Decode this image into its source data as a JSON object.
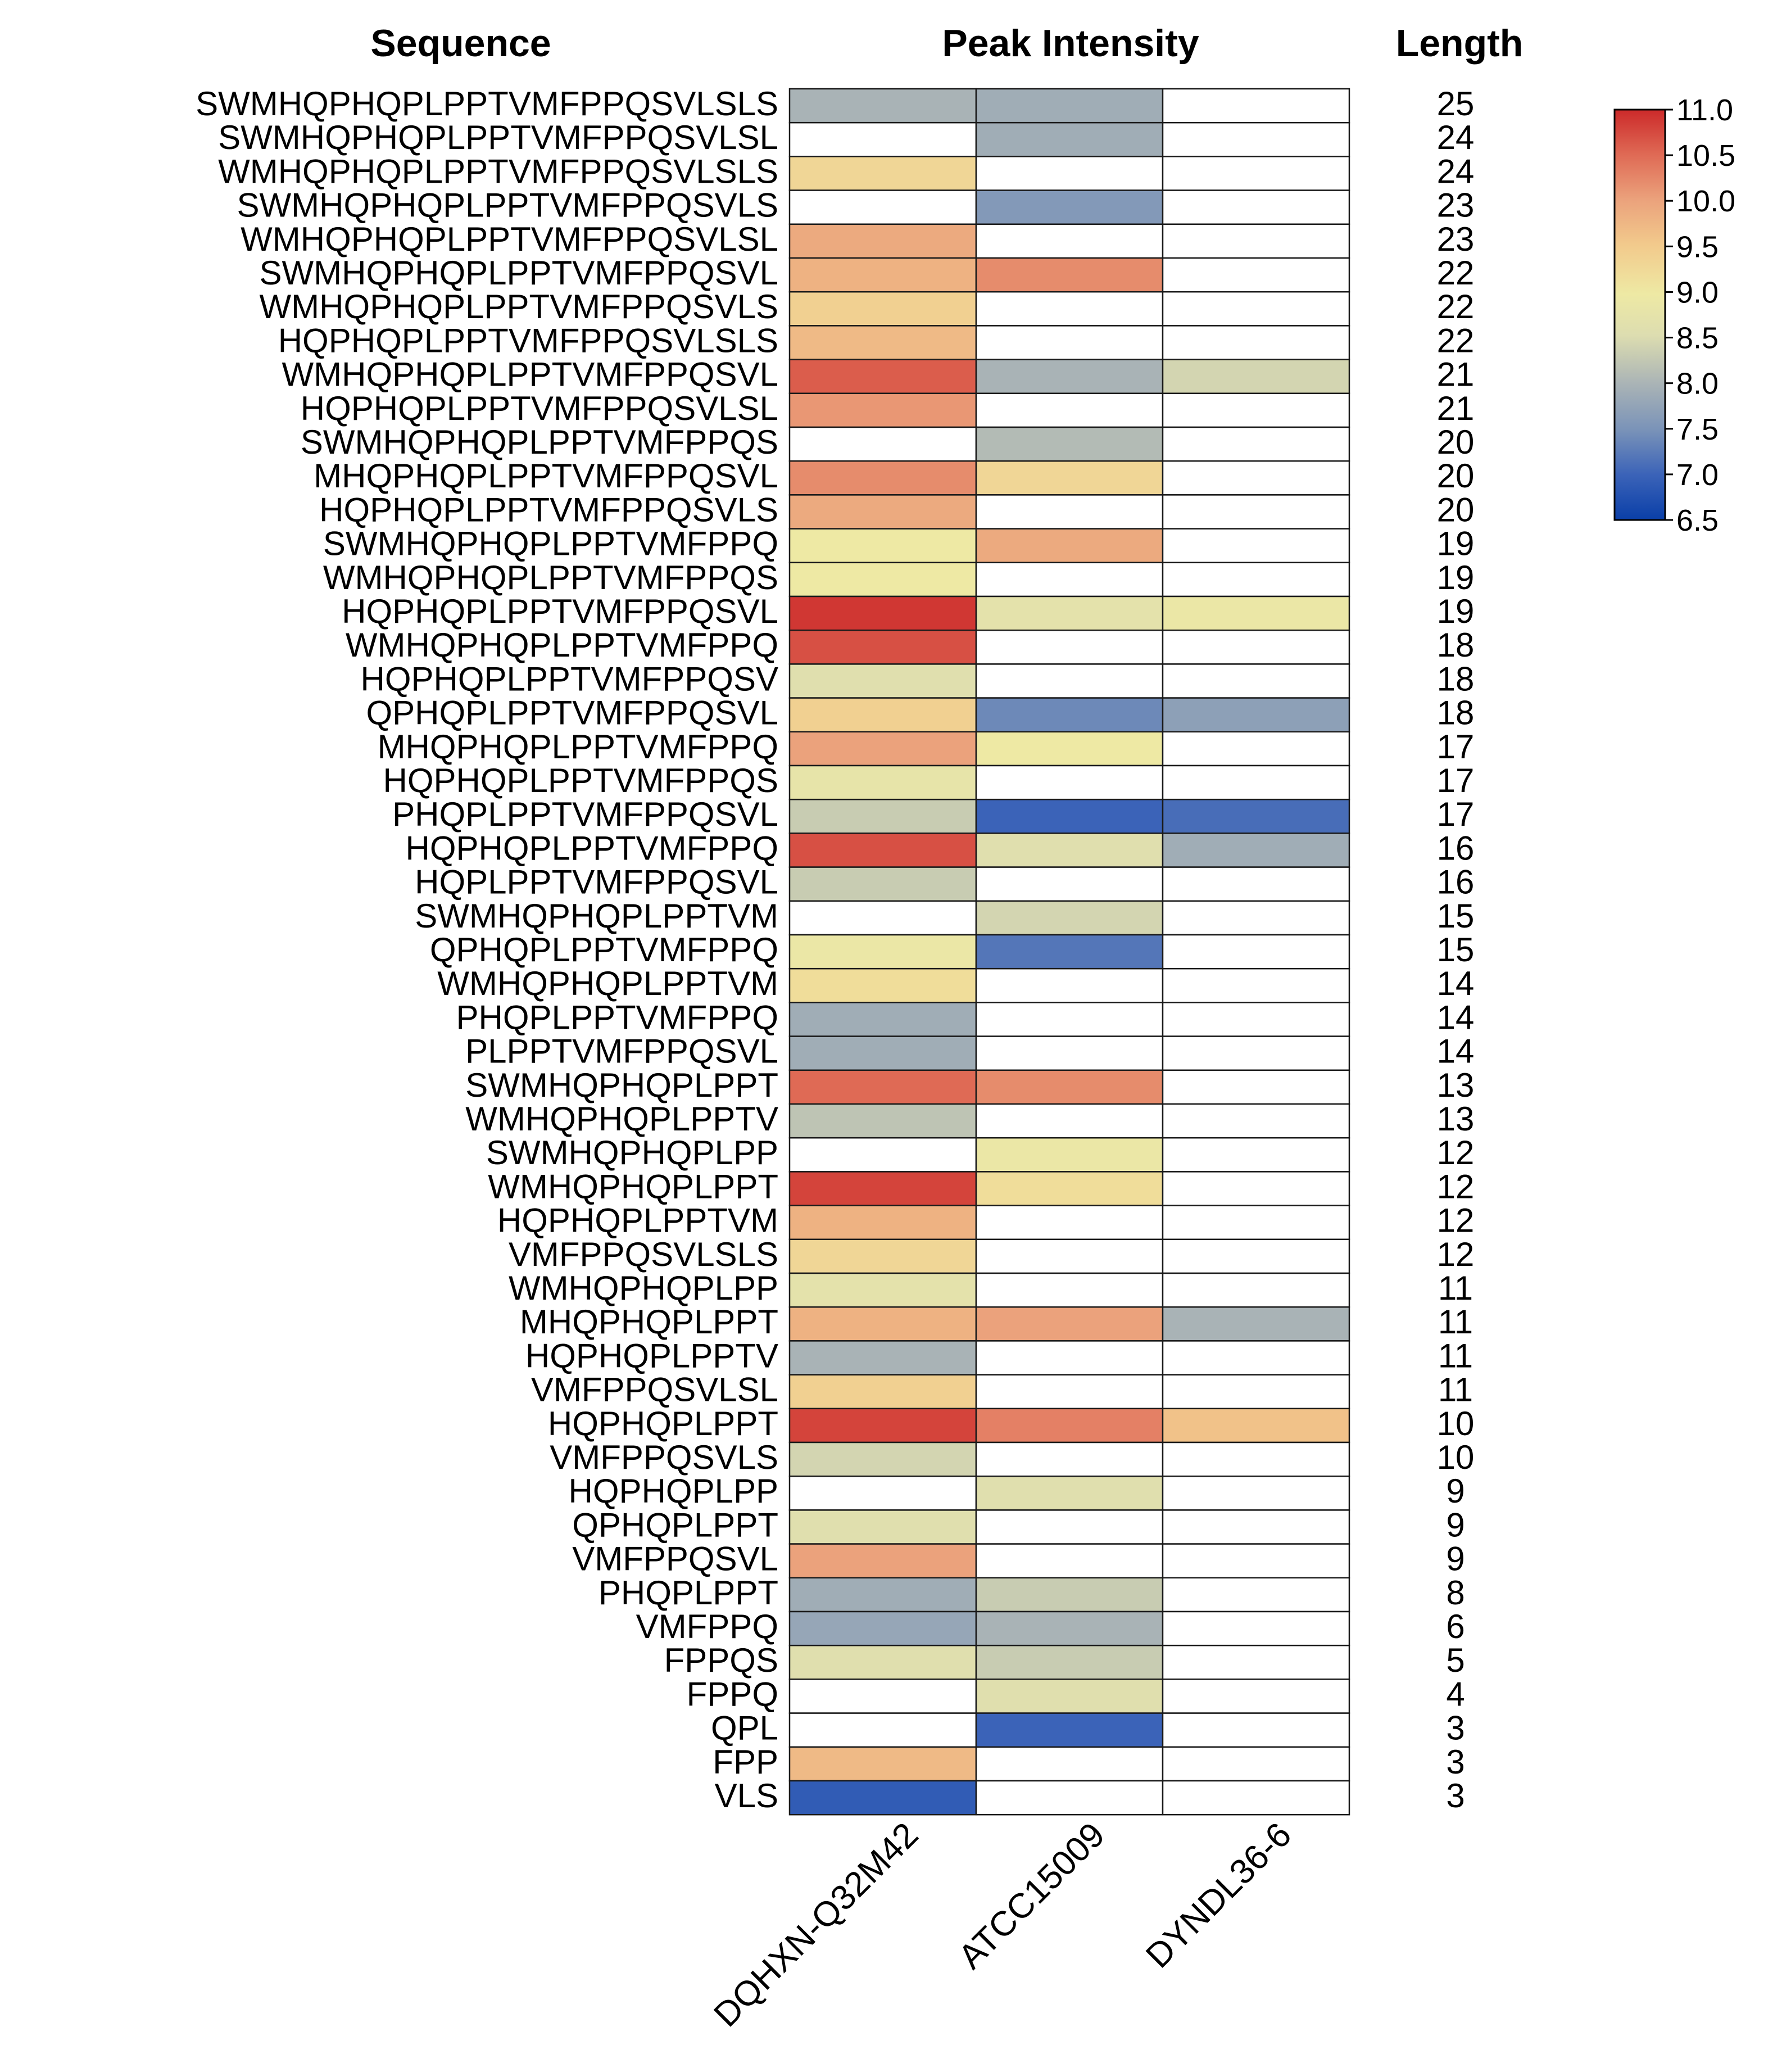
{
  "chart_data": {
    "type": "heatmap",
    "headers": {
      "sequence": "Sequence",
      "intensity": "Peak Intensity",
      "length": "Length"
    },
    "columns": [
      "DQHXN-Q32M42",
      "ATCC15009",
      "DYNDL36-6"
    ],
    "rows": [
      {
        "seq": "SWMHQPHQPLPPTVMFPPQSVLSLS",
        "len": "25",
        "values": [
          8.0,
          7.9,
          null
        ]
      },
      {
        "seq": "SWMHQPHQPLPPTVMFPPQSVLSL",
        "len": "24",
        "values": [
          null,
          7.9,
          null
        ]
      },
      {
        "seq": "WMHQPHQPLPPTVMFPPQSVLSLS",
        "len": "24",
        "values": [
          9.3,
          null,
          null
        ]
      },
      {
        "seq": "SWMHQPHQPLPPTVMFPPQSVLS",
        "len": "23",
        "values": [
          null,
          7.6,
          null
        ]
      },
      {
        "seq": "WMHQPHQPLPPTVMFPPQSVLSL",
        "len": "23",
        "values": [
          9.9,
          null,
          null
        ]
      },
      {
        "seq": "SWMHQPHQPLPPTVMFPPQSVL",
        "len": "22",
        "values": [
          9.8,
          10.2,
          null
        ]
      },
      {
        "seq": "WMHQPHQPLPPTVMFPPQSVLS",
        "len": "22",
        "values": [
          9.4,
          null,
          null
        ]
      },
      {
        "seq": "HQPHQPLPPTVMFPPQSVLSLS",
        "len": "22",
        "values": [
          9.7,
          null,
          null
        ]
      },
      {
        "seq": "WMHQPHQPLPPTVMFPPQSVL",
        "len": "21",
        "values": [
          10.6,
          8.0,
          8.4
        ]
      },
      {
        "seq": "HQPHQPLPPTVMFPPQSVLSL",
        "len": "21",
        "values": [
          10.1,
          null,
          null
        ]
      },
      {
        "seq": "SWMHQPHQPLPPTVMFPPQS",
        "len": "20",
        "values": [
          null,
          8.1,
          null
        ]
      },
      {
        "seq": "MHQPHQPLPPTVMFPPQSVL",
        "len": "20",
        "values": [
          10.2,
          9.3,
          null
        ]
      },
      {
        "seq": "HQPHQPLPPTVMFPPQSVLS",
        "len": "20",
        "values": [
          9.9,
          null,
          null
        ]
      },
      {
        "seq": "SWMHQPHQPLPPTVMFPPQ",
        "len": "19",
        "values": [
          9.0,
          9.9,
          null
        ]
      },
      {
        "seq": "WMHQPHQPLPPTVMFPPQS",
        "len": "19",
        "values": [
          9.0,
          null,
          null
        ]
      },
      {
        "seq": "HQPHQPLPPTVMFPPQSVL",
        "len": "19",
        "values": [
          10.9,
          8.7,
          8.9
        ]
      },
      {
        "seq": "WMHQPHQPLPPTVMFPPQ",
        "len": "18",
        "values": [
          10.7,
          null,
          null
        ]
      },
      {
        "seq": "HQPHQPLPPTVMFPPQSV",
        "len": "18",
        "values": [
          8.6,
          null,
          null
        ]
      },
      {
        "seq": "QPHQPLPPTVMFPPQSVL",
        "len": "18",
        "values": [
          9.4,
          7.4,
          7.7
        ]
      },
      {
        "seq": "MHQPHQPLPPTVMFPPQ",
        "len": "17",
        "values": [
          10.0,
          9.0,
          null
        ]
      },
      {
        "seq": "HQPHQPLPPTVMFPPQS",
        "len": "17",
        "values": [
          8.8,
          null,
          null
        ]
      },
      {
        "seq": "PHQPLPPTVMFPPQSVL",
        "len": "17",
        "values": [
          8.3,
          7.0,
          7.1
        ]
      },
      {
        "seq": "HQPHQPLPPTVMFPPQ",
        "len": "16",
        "values": [
          10.7,
          8.6,
          7.9
        ]
      },
      {
        "seq": "HQPLPPTVMFPPQSVL",
        "len": "16",
        "values": [
          8.3,
          null,
          null
        ]
      },
      {
        "seq": "SWMHQPHQPLPPTVM",
        "len": "15",
        "values": [
          null,
          8.4,
          null
        ]
      },
      {
        "seq": "QPHQPLPPTVMFPPQ",
        "len": "15",
        "values": [
          8.9,
          7.2,
          null
        ]
      },
      {
        "seq": "WMHQPHQPLPPTVM",
        "len": "14",
        "values": [
          9.2,
          null,
          null
        ]
      },
      {
        "seq": "PHQPLPPTVMFPPQ",
        "len": "14",
        "values": [
          7.9,
          null,
          null
        ]
      },
      {
        "seq": "PLPPTVMFPPQSVL",
        "len": "14",
        "values": [
          7.9,
          null,
          null
        ]
      },
      {
        "seq": "SWMHQPHQPLPPT",
        "len": "13",
        "values": [
          10.5,
          10.2,
          null
        ]
      },
      {
        "seq": "WMHQPHQPLPPTV",
        "len": "13",
        "values": [
          8.2,
          null,
          null
        ]
      },
      {
        "seq": "SWMHQPHQPLPP",
        "len": "12",
        "values": [
          null,
          8.9,
          null
        ]
      },
      {
        "seq": "WMHQPHQPLPPT",
        "len": "12",
        "values": [
          10.8,
          9.2,
          null
        ]
      },
      {
        "seq": "HQPHQPLPPTVM",
        "len": "12",
        "values": [
          9.8,
          null,
          null
        ]
      },
      {
        "seq": "VMFPPQSVLSLS",
        "len": "12",
        "values": [
          9.3,
          null,
          null
        ]
      },
      {
        "seq": "WMHQPHQPLPP",
        "len": "11",
        "values": [
          8.7,
          null,
          null
        ]
      },
      {
        "seq": "MHQPHQPLPPT",
        "len": "11",
        "values": [
          9.8,
          10.0,
          8.0
        ]
      },
      {
        "seq": "HQPHQPLPPTV",
        "len": "11",
        "values": [
          8.0,
          null,
          null
        ]
      },
      {
        "seq": "VMFPPQSVLSL",
        "len": "11",
        "values": [
          9.4,
          null,
          null
        ]
      },
      {
        "seq": "HQPHQPLPPT",
        "len": "10",
        "values": [
          10.8,
          10.3,
          9.6
        ]
      },
      {
        "seq": "VMFPPQSVLS",
        "len": "10",
        "values": [
          8.4,
          null,
          null
        ]
      },
      {
        "seq": "HQPHQPLPP",
        "len": "9",
        "values": [
          null,
          8.6,
          null
        ]
      },
      {
        "seq": "QPHQPLPPT",
        "len": "9",
        "values": [
          8.6,
          null,
          null
        ]
      },
      {
        "seq": "VMFPPQSVL",
        "len": "9",
        "values": [
          10.0,
          null,
          null
        ]
      },
      {
        "seq": "PHQPLPPT",
        "len": "8",
        "values": [
          7.9,
          8.3,
          null
        ]
      },
      {
        "seq": "VMFPPQ",
        "len": "6",
        "values": [
          7.8,
          8.0,
          null
        ]
      },
      {
        "seq": "FPPQS",
        "len": "5",
        "values": [
          8.6,
          8.3,
          null
        ]
      },
      {
        "seq": "FPPQ",
        "len": "4",
        "values": [
          null,
          8.6,
          null
        ]
      },
      {
        "seq": "QPL",
        "len": "3",
        "values": [
          null,
          7.0,
          null
        ]
      },
      {
        "seq": "FPP",
        "len": "3",
        "values": [
          9.7,
          null,
          null
        ]
      },
      {
        "seq": "VLS",
        "len": "3",
        "values": [
          6.9,
          null,
          null
        ]
      }
    ],
    "colorbar": {
      "range": [
        6.5,
        11.0
      ],
      "ticks": [
        "11.0",
        "10.5",
        "10.0",
        "9.5",
        "9.0",
        "8.5",
        "8.0",
        "7.5",
        "7.0",
        "6.5"
      ],
      "colors": [
        "#0a3fa8",
        "#3b63b8",
        "#7a93b8",
        "#a9b3b6",
        "#ddddb0",
        "#eee9a4",
        "#f2ca8c",
        "#eba27c",
        "#df6a55",
        "#cc2a2a"
      ]
    },
    "missing_color": "#ffffff"
  }
}
